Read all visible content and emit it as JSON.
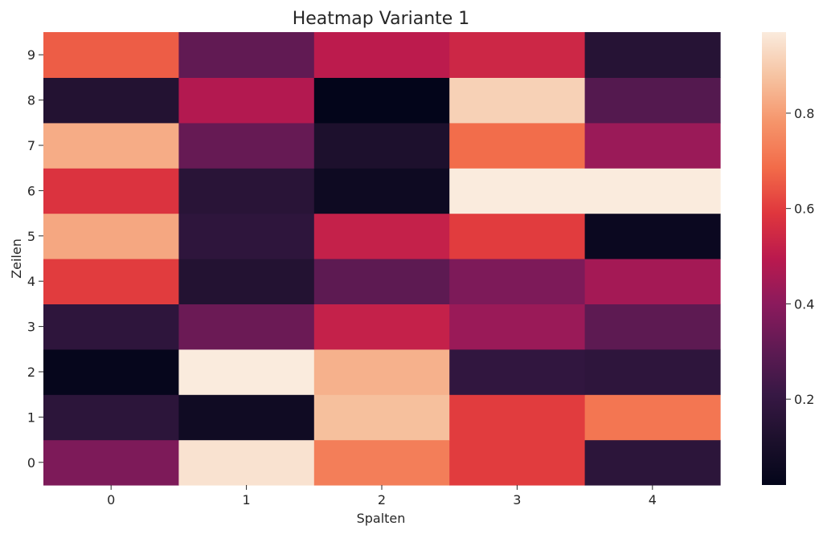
{
  "chart_data": {
    "type": "heatmap",
    "title": "Heatmap Variante 1",
    "xlabel": "Spalten",
    "ylabel": "Zeilen",
    "x_categories": [
      "0",
      "1",
      "2",
      "3",
      "4"
    ],
    "y_categories": [
      "0",
      "1",
      "2",
      "3",
      "4",
      "5",
      "6",
      "7",
      "8",
      "9"
    ],
    "values": [
      [
        0.37,
        0.95,
        0.73,
        0.6,
        0.17
      ],
      [
        0.17,
        0.07,
        0.87,
        0.6,
        0.71
      ],
      [
        0.03,
        0.97,
        0.84,
        0.19,
        0.18
      ],
      [
        0.18,
        0.33,
        0.52,
        0.43,
        0.3
      ],
      [
        0.6,
        0.14,
        0.3,
        0.37,
        0.45
      ],
      [
        0.82,
        0.18,
        0.52,
        0.6,
        0.05
      ],
      [
        0.58,
        0.16,
        0.06,
        0.97,
        0.97
      ],
      [
        0.83,
        0.32,
        0.12,
        0.69,
        0.43
      ],
      [
        0.14,
        0.48,
        0.02,
        0.91,
        0.28
      ],
      [
        0.66,
        0.31,
        0.5,
        0.54,
        0.15
      ]
    ],
    "colorbar": {
      "colormap": "rocket",
      "range": [
        0.02,
        0.97
      ],
      "ticks": [
        "0.2",
        "0.4",
        "0.6",
        "0.8"
      ]
    },
    "grid": false
  }
}
